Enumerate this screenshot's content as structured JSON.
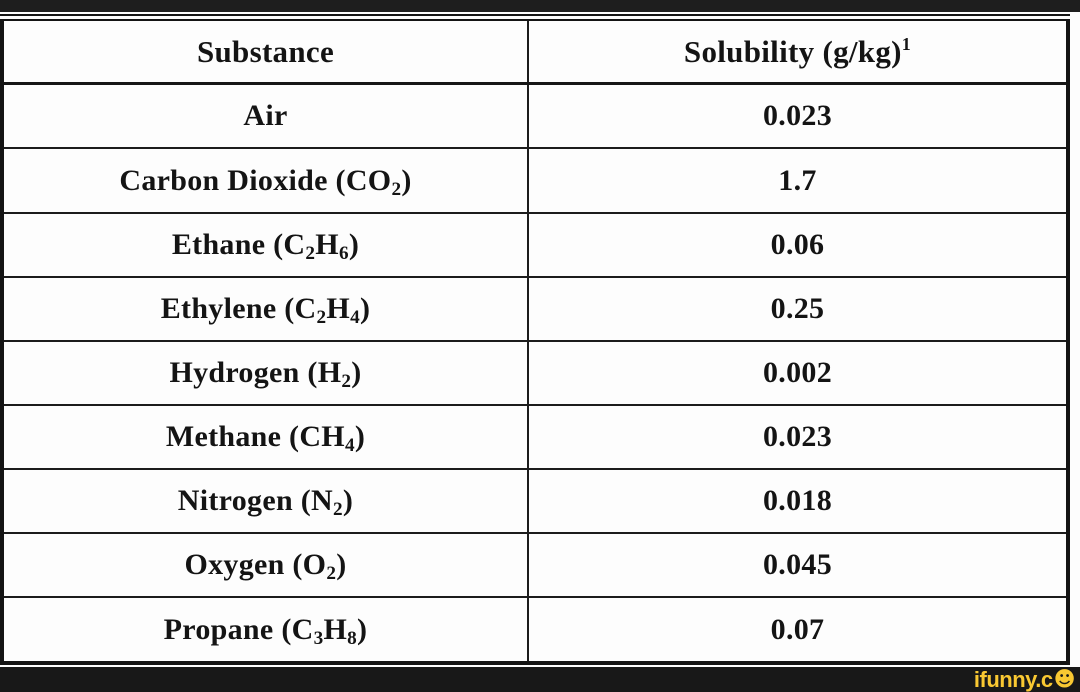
{
  "page": {
    "background": "#ffffff",
    "top_bar_color": "#1e1e1e",
    "bottom_bar_color": "#181818",
    "line_color": "#1c1c1c",
    "text_color": "#141414"
  },
  "watermark": {
    "text": "ifunny.c",
    "smiley_char": "☻",
    "color": "#F9C832",
    "icon": "smiley-face-icon"
  },
  "table": {
    "header": {
      "substance_label": "Substance",
      "solubility_parts": [
        {
          "t": "Solubility (g/kg)"
        },
        {
          "t": "1",
          "sup": true
        }
      ]
    },
    "rows": [
      {
        "substance_parts": [
          {
            "t": "Air"
          }
        ],
        "solubility": "0.023"
      },
      {
        "substance_parts": [
          {
            "t": "Carbon Dioxide (CO"
          },
          {
            "t": "2",
            "sub": true
          },
          {
            "t": ")"
          }
        ],
        "solubility": "1.7"
      },
      {
        "substance_parts": [
          {
            "t": "Ethane (C"
          },
          {
            "t": "2",
            "sub": true
          },
          {
            "t": "H"
          },
          {
            "t": "6",
            "sub": true
          },
          {
            "t": ")"
          }
        ],
        "solubility": "0.06"
      },
      {
        "substance_parts": [
          {
            "t": "Ethylene (C"
          },
          {
            "t": "2",
            "sub": true
          },
          {
            "t": "H"
          },
          {
            "t": "4",
            "sub": true
          },
          {
            "t": ")"
          }
        ],
        "solubility": "0.25"
      },
      {
        "substance_parts": [
          {
            "t": "Hydrogen (H"
          },
          {
            "t": "2",
            "sub": true
          },
          {
            "t": ")"
          }
        ],
        "solubility": "0.002"
      },
      {
        "substance_parts": [
          {
            "t": "Methane (CH"
          },
          {
            "t": "4",
            "sub": true
          },
          {
            "t": ")"
          }
        ],
        "solubility": "0.023"
      },
      {
        "substance_parts": [
          {
            "t": "Nitrogen (N"
          },
          {
            "t": "2",
            "sub": true
          },
          {
            "t": ")"
          }
        ],
        "solubility": "0.018"
      },
      {
        "substance_parts": [
          {
            "t": "Oxygen (O"
          },
          {
            "t": "2",
            "sub": true
          },
          {
            "t": ")"
          }
        ],
        "solubility": "0.045"
      },
      {
        "substance_parts": [
          {
            "t": "Propane (C"
          },
          {
            "t": "3",
            "sub": true
          },
          {
            "t": "H"
          },
          {
            "t": "8",
            "sub": true
          },
          {
            "t": ")"
          }
        ],
        "solubility": "0.07"
      }
    ]
  }
}
